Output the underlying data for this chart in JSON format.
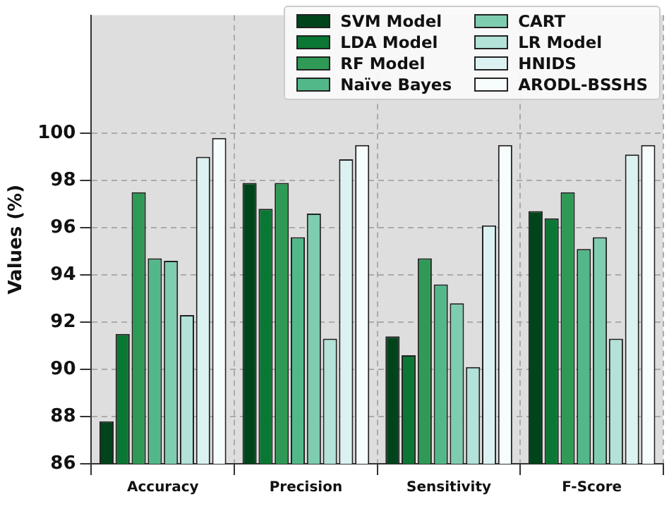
{
  "chart_data": {
    "type": "bar",
    "ylabel": "Values (%)",
    "categories": [
      "Accuracy",
      "Precision",
      "Sensitivity",
      "F-Score"
    ],
    "series": [
      {
        "name": "SVM Model",
        "color": "#00441b",
        "values": [
          87.8,
          97.9,
          91.4,
          96.7
        ]
      },
      {
        "name": "LDA Model",
        "color": "#0b7734",
        "values": [
          91.5,
          96.8,
          90.6,
          96.4
        ]
      },
      {
        "name": "RF Model",
        "color": "#2e9a55",
        "values": [
          97.5,
          97.9,
          94.7,
          97.5
        ]
      },
      {
        "name": "Naïve Bayes",
        "color": "#52b88a",
        "values": [
          94.7,
          95.6,
          93.6,
          95.1
        ]
      },
      {
        "name": "CART",
        "color": "#7fcdb0",
        "values": [
          94.6,
          96.6,
          92.8,
          95.6
        ]
      },
      {
        "name": "LR Model",
        "color": "#b2e2d8",
        "values": [
          92.3,
          91.3,
          90.1,
          91.3
        ]
      },
      {
        "name": "HNIDS",
        "color": "#dcf2f2",
        "values": [
          99.0,
          98.9,
          96.1,
          99.1
        ]
      },
      {
        "name": "ARODL-BSSHS",
        "color": "#f7fcfd",
        "values": [
          99.8,
          99.5,
          99.5,
          99.5
        ]
      }
    ],
    "ylim": [
      86,
      105
    ],
    "yticks": [
      86,
      88,
      90,
      92,
      94,
      96,
      98,
      100
    ],
    "grid": true,
    "legend": "top right"
  }
}
